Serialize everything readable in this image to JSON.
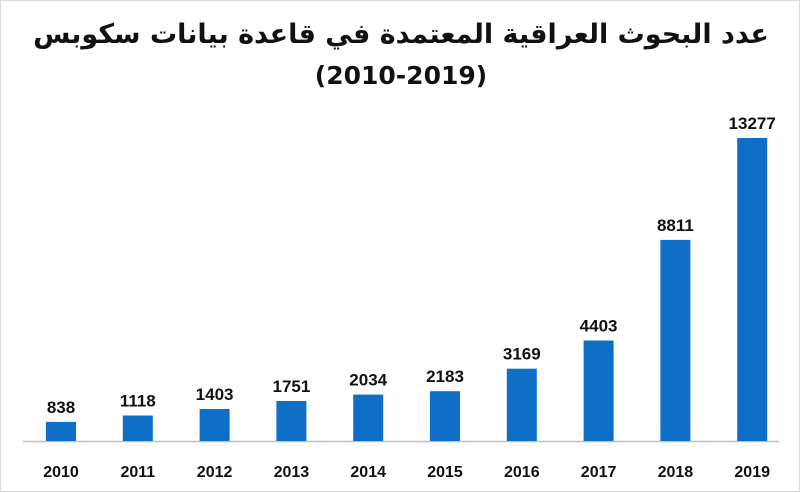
{
  "chart_data": {
    "type": "bar",
    "title": "عدد البحوث العراقية المعتمدة في قاعدة بيانات سكوبس",
    "subtitle": "(2010-2019)",
    "xlabel": "",
    "ylabel": "",
    "categories": [
      "2010",
      "2011",
      "2012",
      "2013",
      "2014",
      "2015",
      "2016",
      "2017",
      "2018",
      "2019"
    ],
    "values": [
      838,
      1118,
      1403,
      1751,
      2034,
      2183,
      3169,
      4403,
      8811,
      13277
    ],
    "ylim": [
      0,
      13277
    ],
    "grid": false,
    "legend": "none",
    "colors": {
      "bar": "#0f6fc6",
      "axis": "#bfbfbf",
      "text": "#111111"
    }
  }
}
